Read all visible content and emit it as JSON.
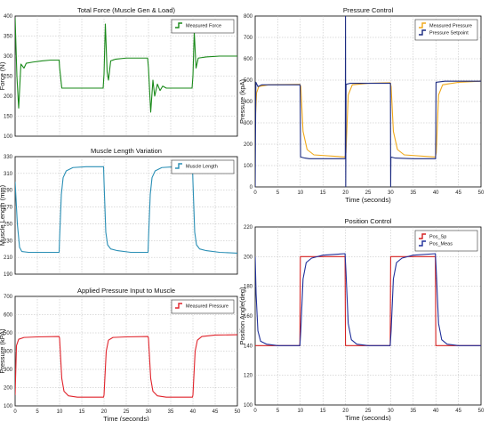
{
  "chart_data": [
    {
      "type": "line",
      "title": "Total Force (Muscle Gen & Load)",
      "xlabel": "",
      "ylabel": "Force (N)",
      "xlim": [
        0,
        50
      ],
      "ylim": [
        100,
        400
      ],
      "xticks": [],
      "yticks": [
        100,
        150,
        200,
        250,
        300,
        350,
        400
      ],
      "grid": true,
      "legend_position": "top-right",
      "series": [
        {
          "name": "Measured Force",
          "color": "#1a8a1a",
          "points": [
            [
              0,
              395
            ],
            [
              0.4,
              250
            ],
            [
              0.8,
              170
            ],
            [
              1.3,
              280
            ],
            [
              2,
              270
            ],
            [
              2.5,
              282
            ],
            [
              4,
              285
            ],
            [
              6,
              288
            ],
            [
              8,
              290
            ],
            [
              9.9,
              290
            ],
            [
              10,
              272
            ],
            [
              10.5,
              220
            ],
            [
              11.5,
              220
            ],
            [
              14,
              220
            ],
            [
              19.8,
              220
            ],
            [
              20,
              255
            ],
            [
              20.3,
              380
            ],
            [
              20.7,
              260
            ],
            [
              21,
              240
            ],
            [
              21.5,
              288
            ],
            [
              22.5,
              292
            ],
            [
              25,
              295
            ],
            [
              29.8,
              295
            ],
            [
              30,
              270
            ],
            [
              30.5,
              160
            ],
            [
              31,
              240
            ],
            [
              31.4,
              200
            ],
            [
              32,
              230
            ],
            [
              32.6,
              214
            ],
            [
              33.2,
              225
            ],
            [
              34,
              220
            ],
            [
              37,
              220
            ],
            [
              39.8,
              220
            ],
            [
              40,
              250
            ],
            [
              40.3,
              360
            ],
            [
              40.7,
              270
            ],
            [
              41.2,
              295
            ],
            [
              43,
              298
            ],
            [
              46,
              300
            ],
            [
              50,
              300
            ]
          ]
        }
      ]
    },
    {
      "type": "line",
      "title": "Muscle Length Variation",
      "xlabel": "",
      "ylabel": "Muscle Length (mm)",
      "xlim": [
        0,
        50
      ],
      "ylim": [
        190,
        330
      ],
      "xticks": [],
      "yticks": [
        190,
        210,
        230,
        250,
        270,
        290,
        310,
        330
      ],
      "grid": true,
      "legend_position": "top-right",
      "series": [
        {
          "name": "Muscle Length",
          "color": "#2a8fb5",
          "points": [
            [
              0,
              300
            ],
            [
              0.5,
              250
            ],
            [
              1,
              222
            ],
            [
              1.5,
              217
            ],
            [
              3,
              216
            ],
            [
              6,
              216
            ],
            [
              9.9,
              216
            ],
            [
              10,
              232
            ],
            [
              10.4,
              285
            ],
            [
              10.8,
              305
            ],
            [
              11.5,
              313
            ],
            [
              13,
              317
            ],
            [
              16,
              318
            ],
            [
              19.9,
              318
            ],
            [
              20,
              300
            ],
            [
              20.4,
              240
            ],
            [
              20.8,
              225
            ],
            [
              21.5,
              220
            ],
            [
              23,
              218
            ],
            [
              26,
              216
            ],
            [
              29.9,
              216
            ],
            [
              30,
              232
            ],
            [
              30.4,
              285
            ],
            [
              30.8,
              305
            ],
            [
              31.5,
              313
            ],
            [
              33,
              317
            ],
            [
              36,
              318
            ],
            [
              39.9,
              318
            ],
            [
              40,
              300
            ],
            [
              40.4,
              240
            ],
            [
              40.8,
              225
            ],
            [
              41.5,
              220
            ],
            [
              43,
              218
            ],
            [
              46,
              216
            ],
            [
              50,
              215
            ]
          ]
        }
      ]
    },
    {
      "type": "line",
      "title": "Applied Pressure Input to Muscle",
      "xlabel": "Time (seconds)",
      "ylabel": "Pressure (kPA)",
      "xlim": [
        0,
        50
      ],
      "ylim": [
        100,
        700
      ],
      "xticks": [
        0,
        5,
        10,
        15,
        20,
        25,
        30,
        35,
        40,
        45,
        50
      ],
      "yticks": [
        100,
        200,
        300,
        400,
        500,
        600,
        700
      ],
      "grid": true,
      "legend_position": "top-right",
      "series": [
        {
          "name": "Measured Pressure",
          "color": "#e0232b",
          "points": [
            [
              0,
              160
            ],
            [
              0.3,
              430
            ],
            [
              0.8,
              465
            ],
            [
              2,
              475
            ],
            [
              5,
              478
            ],
            [
              9.9,
              480
            ],
            [
              10,
              470
            ],
            [
              10.5,
              250
            ],
            [
              11,
              180
            ],
            [
              12,
              155
            ],
            [
              14,
              148
            ],
            [
              19.9,
              148
            ],
            [
              20,
              160
            ],
            [
              20.5,
              400
            ],
            [
              21,
              460
            ],
            [
              22,
              475
            ],
            [
              25,
              478
            ],
            [
              29.9,
              480
            ],
            [
              30,
              470
            ],
            [
              30.5,
              250
            ],
            [
              31,
              180
            ],
            [
              32,
              155
            ],
            [
              34,
              148
            ],
            [
              39.9,
              148
            ],
            [
              40,
              160
            ],
            [
              40.5,
              400
            ],
            [
              41,
              460
            ],
            [
              42,
              480
            ],
            [
              45,
              488
            ],
            [
              50,
              490
            ]
          ]
        }
      ]
    },
    {
      "type": "line",
      "title": "Pressure Control",
      "xlabel": "Time (seconds)",
      "ylabel": "Pressure (kpA)",
      "xlim": [
        0,
        50
      ],
      "ylim": [
        0,
        800
      ],
      "xticks": [
        0,
        5,
        10,
        15,
        20,
        25,
        30,
        35,
        40,
        45,
        50
      ],
      "yticks": [
        0,
        100,
        200,
        300,
        400,
        500,
        600,
        700,
        800
      ],
      "grid": true,
      "legend_position": "top-right",
      "series": [
        {
          "name": "Measured Pressure",
          "color": "#f0a81a",
          "points": [
            [
              0,
              300
            ],
            [
              0.3,
              440
            ],
            [
              0.8,
              470
            ],
            [
              3,
              478
            ],
            [
              9.9,
              480
            ],
            [
              10.1,
              470
            ],
            [
              10.6,
              260
            ],
            [
              11.5,
              175
            ],
            [
              13,
              150
            ],
            [
              19.9,
              140
            ],
            [
              20.1,
              160
            ],
            [
              20.6,
              430
            ],
            [
              21.5,
              478
            ],
            [
              25,
              485
            ],
            [
              29.9,
              488
            ],
            [
              30.1,
              470
            ],
            [
              30.6,
              260
            ],
            [
              31.5,
              175
            ],
            [
              33,
              150
            ],
            [
              39.9,
              140
            ],
            [
              40.1,
              160
            ],
            [
              40.6,
              430
            ],
            [
              41.5,
              478
            ],
            [
              45,
              490
            ],
            [
              50,
              495
            ]
          ]
        },
        {
          "name": "Pressure Setpoint",
          "color": "#1b2a80",
          "points": [
            [
              0,
              0
            ],
            [
              0.15,
              490
            ],
            [
              0.6,
              470
            ],
            [
              1.5,
              478
            ],
            [
              5,
              478
            ],
            [
              9.95,
              478
            ],
            [
              10.05,
              140
            ],
            [
              11,
              135
            ],
            [
              12,
              132
            ],
            [
              19.95,
              132
            ],
            [
              20,
              800
            ],
            [
              20.05,
              0
            ],
            [
              20.12,
              480
            ],
            [
              21,
              485
            ],
            [
              25,
              485
            ],
            [
              29.95,
              485
            ],
            [
              30,
              0
            ],
            [
              30.05,
              140
            ],
            [
              31,
              135
            ],
            [
              35,
              132
            ],
            [
              39.95,
              132
            ],
            [
              40.05,
              490
            ],
            [
              42,
              495
            ],
            [
              50,
              495
            ]
          ]
        }
      ]
    },
    {
      "type": "line",
      "title": "Position Control",
      "xlabel": "Time (seconds)",
      "ylabel": "Position Angle(deg)",
      "xlim": [
        0,
        50
      ],
      "ylim": [
        100,
        220
      ],
      "xticks": [
        0,
        5,
        10,
        15,
        20,
        25,
        30,
        35,
        40,
        45,
        50
      ],
      "yticks": [
        100,
        120,
        140,
        160,
        180,
        200,
        220
      ],
      "grid": true,
      "legend_position": "top-right",
      "series": [
        {
          "name": "Pos_Sp",
          "color": "#d42020",
          "points": [
            [
              0,
              140
            ],
            [
              9.9,
              140
            ],
            [
              10,
              200
            ],
            [
              19.9,
              200
            ],
            [
              20,
              140
            ],
            [
              29.9,
              140
            ],
            [
              30,
              200
            ],
            [
              39.9,
              200
            ],
            [
              40,
              140
            ],
            [
              50,
              140
            ]
          ]
        },
        {
          "name": "Pos_Meas",
          "color": "#1f2f9a",
          "points": [
            [
              0,
              200
            ],
            [
              0.2,
              175
            ],
            [
              0.6,
              150
            ],
            [
              1.2,
              143
            ],
            [
              2.5,
              141
            ],
            [
              5,
              140
            ],
            [
              9.9,
              140
            ],
            [
              10.1,
              150
            ],
            [
              10.6,
              185
            ],
            [
              11.3,
              196
            ],
            [
              12.5,
              199
            ],
            [
              15,
              201
            ],
            [
              19.9,
              202
            ],
            [
              20.1,
              190
            ],
            [
              20.6,
              155
            ],
            [
              21.3,
              144
            ],
            [
              22.5,
              141
            ],
            [
              25,
              140
            ],
            [
              29.9,
              140
            ],
            [
              30.1,
              150
            ],
            [
              30.6,
              185
            ],
            [
              31.3,
              196
            ],
            [
              32.5,
              199
            ],
            [
              35,
              201
            ],
            [
              39.9,
              202
            ],
            [
              40.1,
              190
            ],
            [
              40.6,
              155
            ],
            [
              41.3,
              144
            ],
            [
              42.5,
              141
            ],
            [
              45,
              140
            ],
            [
              50,
              140
            ]
          ]
        }
      ]
    }
  ]
}
